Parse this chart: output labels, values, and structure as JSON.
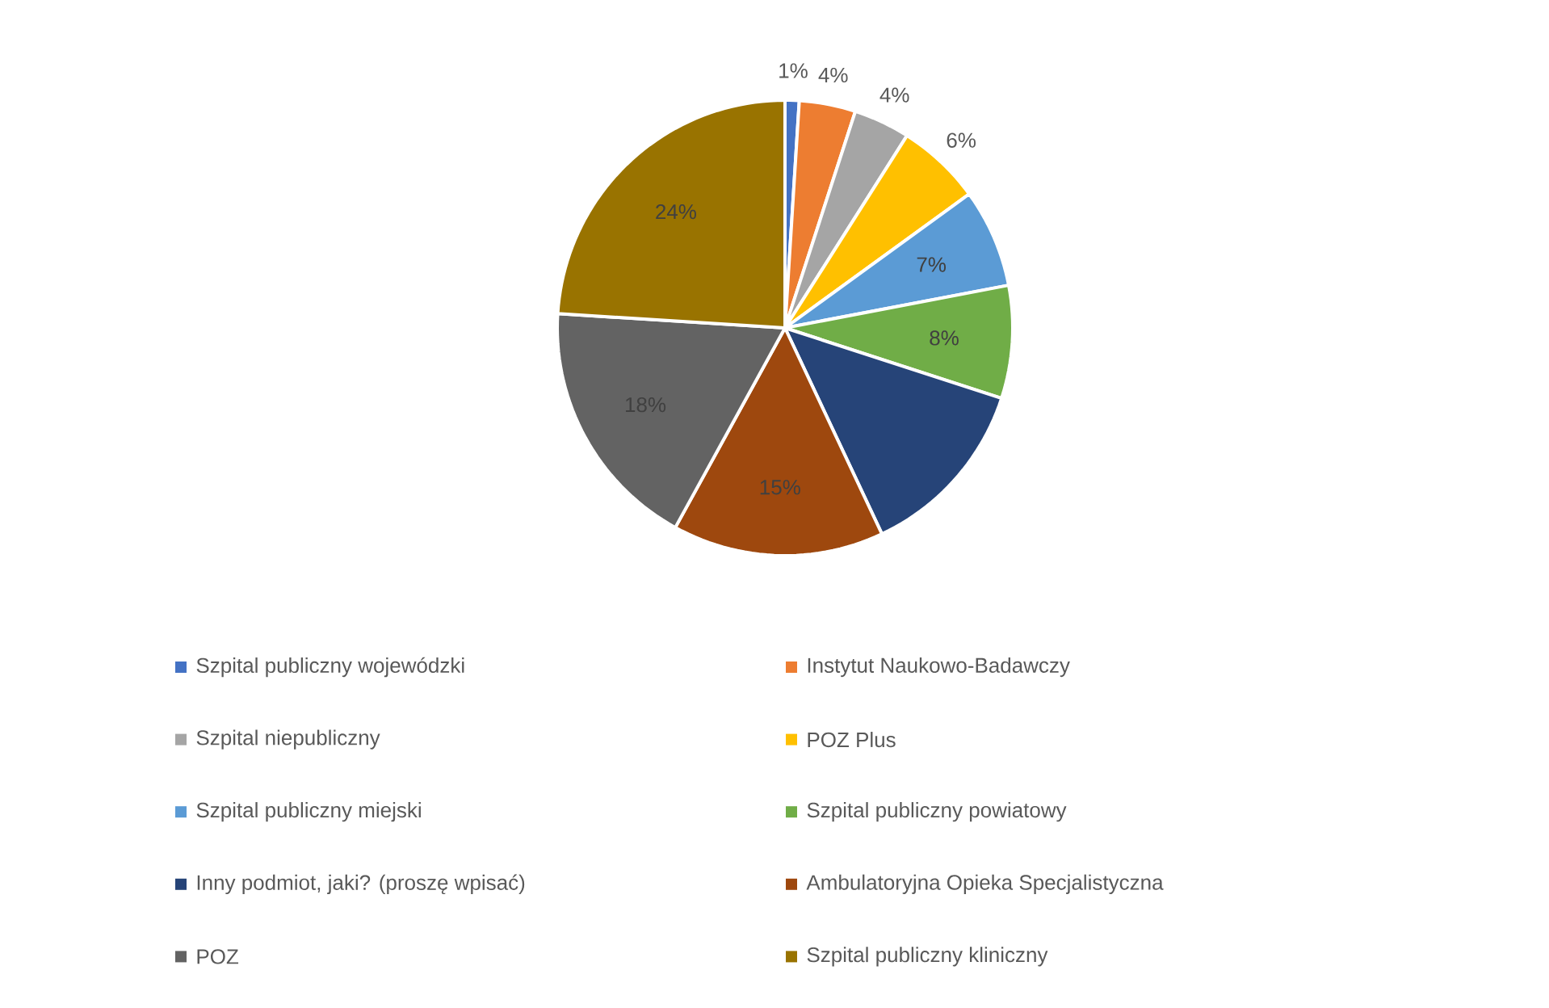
{
  "chart_data": {
    "type": "pie",
    "categories": [
      "Szpital publiczny wojewódzki",
      "Instytut Naukowo-Badawczy",
      "Szpital niepubliczny",
      "POZ Plus",
      "Szpital publiczny miejski",
      "Szpital publiczny powiatowy",
      "Inny podmiot, jaki? (proszę wpisać)",
      "Ambulatoryjna Opieka Specjalistyczna",
      "POZ",
      "Szpital publiczny kliniczny"
    ],
    "values": [
      1,
      4,
      4,
      6,
      7,
      8,
      13,
      15,
      18,
      24
    ],
    "value_labels": [
      "1%",
      "4%",
      "4%",
      "6%",
      "7%",
      "8%",
      null,
      "15%",
      "18%",
      "24%"
    ],
    "colors": [
      "#4472c4",
      "#ed7d31",
      "#a5a5a5",
      "#ffc000",
      "#5b9bd5",
      "#70ad47",
      "#264478",
      "#9e480e",
      "#636363",
      "#997300"
    ],
    "legend": "bottom"
  }
}
